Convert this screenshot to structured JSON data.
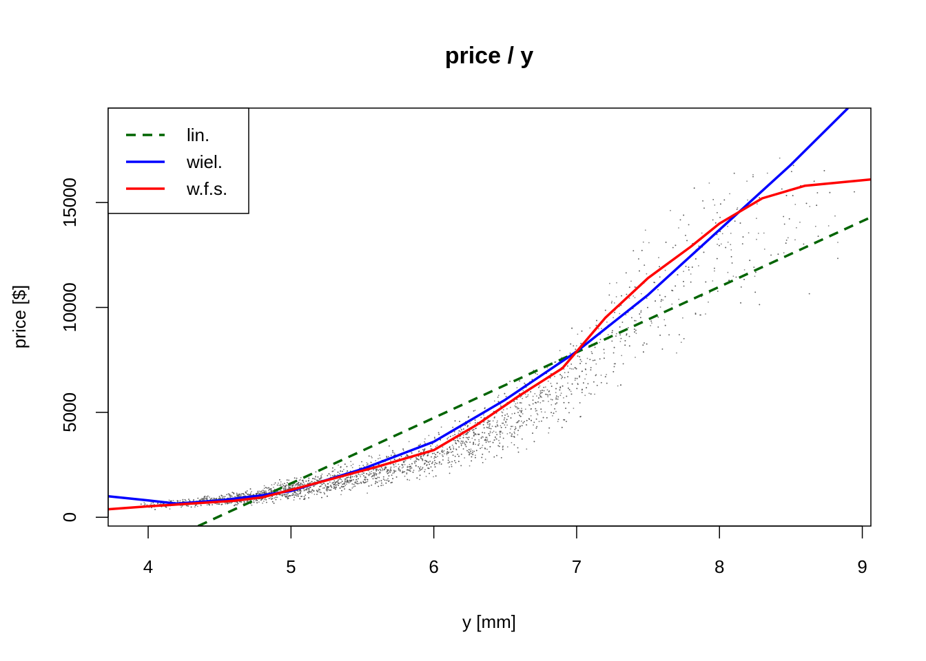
{
  "chart_data": {
    "type": "scatter",
    "title": "price / y",
    "xlabel": "y [mm]",
    "ylabel": "price [$]",
    "xlim": [
      3.72,
      9.06
    ],
    "ylim": [
      -420,
      19500
    ],
    "x_ticks": [
      4,
      5,
      6,
      7,
      8,
      9
    ],
    "y_ticks": [
      0,
      5000,
      10000,
      15000
    ],
    "grid": false,
    "legend_position": "top-left",
    "point_color": "#555555",
    "scatter_density": [
      {
        "x": 4.0,
        "y_low": 300,
        "y_high": 800,
        "weight": 1
      },
      {
        "x": 4.3,
        "y_low": 400,
        "y_high": 1000,
        "weight": 4
      },
      {
        "x": 4.6,
        "y_low": 450,
        "y_high": 1250,
        "weight": 7
      },
      {
        "x": 5.0,
        "y_low": 600,
        "y_high": 2000,
        "weight": 8
      },
      {
        "x": 5.5,
        "y_low": 1000,
        "y_high": 3000,
        "weight": 6
      },
      {
        "x": 6.0,
        "y_low": 1600,
        "y_high": 4300,
        "weight": 5
      },
      {
        "x": 6.5,
        "y_low": 2500,
        "y_high": 6500,
        "weight": 6
      },
      {
        "x": 7.0,
        "y_low": 4000,
        "y_high": 9500,
        "weight": 3
      },
      {
        "x": 7.4,
        "y_low": 5500,
        "y_high": 14500,
        "weight": 2
      },
      {
        "x": 8.0,
        "y_low": 7500,
        "y_high": 18000,
        "weight": 1.5
      },
      {
        "x": 8.5,
        "y_low": 9500,
        "y_high": 18500,
        "weight": 0.7
      },
      {
        "x": 8.9,
        "y_low": 11000,
        "y_high": 18000,
        "weight": 0.2
      }
    ],
    "series": [
      {
        "name": "lin.",
        "color": "#006400",
        "dashed": true,
        "x": [
          4.35,
          9.06
        ],
        "y": [
          -420,
          14300
        ]
      },
      {
        "name": "wiel.",
        "color": "#0000ff",
        "dashed": false,
        "x": [
          3.72,
          4.0,
          4.2,
          4.5,
          4.8,
          5.0,
          5.5,
          6.0,
          6.5,
          7.0,
          7.5,
          8.0,
          8.5,
          8.9
        ],
        "y": [
          1000,
          800,
          650,
          800,
          1050,
          1250,
          2300,
          3600,
          5600,
          7900,
          10600,
          13700,
          16800,
          19500
        ]
      },
      {
        "name": "w.f.s.",
        "color": "#ff0000",
        "dashed": false,
        "x": [
          3.72,
          4.0,
          4.3,
          4.6,
          4.8,
          5.0,
          5.3,
          5.6,
          6.0,
          6.3,
          6.6,
          6.9,
          7.0,
          7.2,
          7.5,
          7.8,
          8.0,
          8.3,
          8.6,
          9.06
        ],
        "y": [
          380,
          520,
          650,
          780,
          950,
          1300,
          1850,
          2400,
          3200,
          4400,
          5800,
          7100,
          7900,
          9500,
          11400,
          12900,
          14000,
          15200,
          15800,
          16100
        ]
      }
    ]
  }
}
